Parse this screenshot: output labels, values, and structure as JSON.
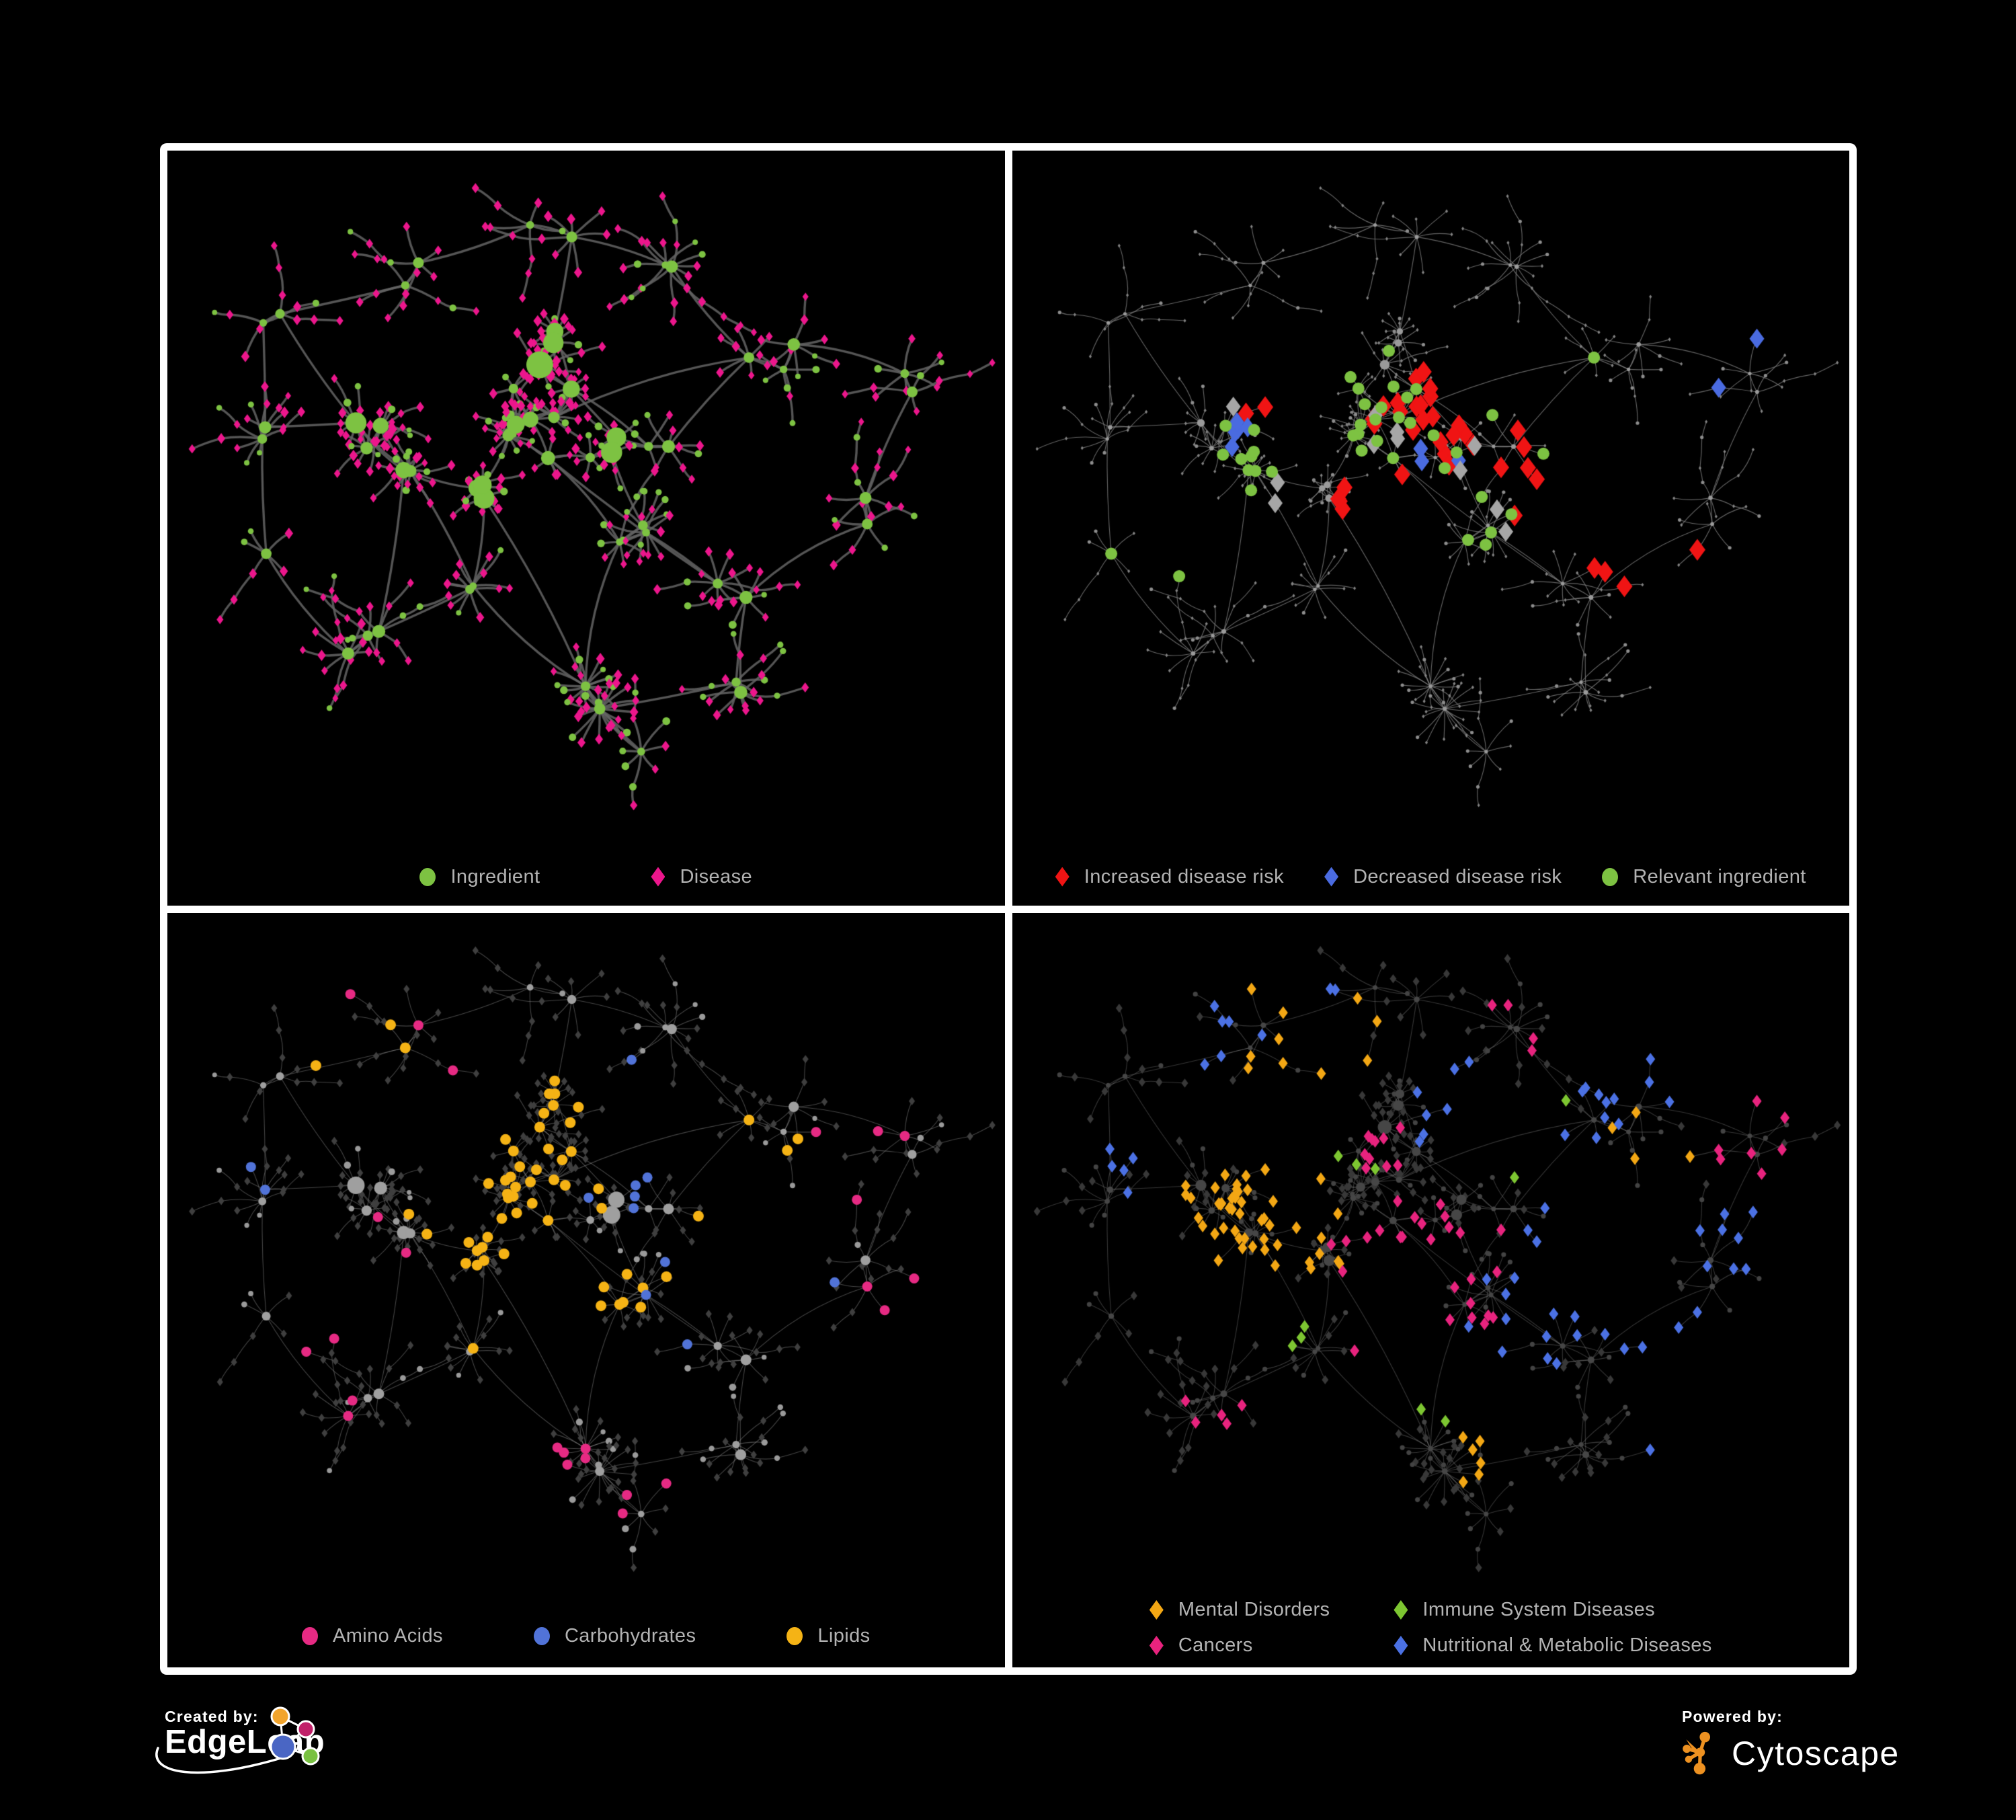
{
  "branding": {
    "left": {
      "prefix": "Created by:",
      "name": "EdgeLeap"
    },
    "right": {
      "prefix": "Powered by:",
      "name": "Cytoscape"
    }
  },
  "colors": {
    "background": "#000000",
    "frame": "#ffffff",
    "legend_text": "#b3b3b3",
    "ingredient_green": "#7dc242",
    "disease_pink": "#ec168c",
    "increased_risk_red": "#f01414",
    "decreased_risk_blue": "#4a6be0",
    "neutral_gray": "#a6a6a6",
    "amino_acids_pink": "#e62a83",
    "carbohydrates_blue": "#5173d8",
    "lipids_orange": "#f5b315",
    "mental_disorders_orange": "#f3a714",
    "immune_green": "#7dc631",
    "cancers_pink": "#e8237e",
    "nutritional_metabolic_blue": "#4b71e4",
    "cytoscape_orange": "#ed9121"
  },
  "panels": [
    {
      "slug": "ingredient-disease",
      "legend": {
        "layout": "row",
        "rows": [
          [
            {
              "label": "Ingredient",
              "shape": "circle",
              "color": "#7dc242"
            },
            {
              "label": "Disease",
              "shape": "diamond",
              "color": "#ec168c"
            }
          ]
        ]
      },
      "style": {
        "edge": {
          "color": "#646464",
          "width": 3.4,
          "alpha": 0.85
        },
        "hub": {
          "color": "#7dc242",
          "scale": 1.15,
          "min": 5
        },
        "leafCircle": {
          "color": "#7dc242",
          "scale": 1.05
        },
        "leafDiamond": {
          "color": "#ec168c",
          "scale": 1.1
        }
      },
      "highlights": []
    },
    {
      "slug": "disease-risk",
      "legend": {
        "layout": "row",
        "rows": [
          [
            {
              "label": "Increased disease risk",
              "shape": "diamond",
              "color": "#f01414"
            },
            {
              "label": "Decreased disease risk",
              "shape": "diamond",
              "color": "#4a6be0"
            },
            {
              "label": "Relevant ingredient",
              "shape": "circle",
              "color": "#7dc242"
            }
          ]
        ]
      },
      "style": {
        "edge": {
          "color": "#7d7d7d",
          "width": 1.15,
          "alpha": 0.8
        },
        "hub": {
          "color": "#9a9a9a",
          "scale": 0.42,
          "min": 2.6
        },
        "leafCircle": {
          "color": "#8d8d8d",
          "size": 2.6
        },
        "leafDiamond": {
          "color": "#828282",
          "size": 2.1
        }
      },
      "highlights": [
        {
          "shape": "diamond",
          "color": "#f01414",
          "size": 12,
          "target": "diamond",
          "groups": [
            [
              22,
              0.5,
              0.37,
              0.1
            ],
            [
              6,
              0.64,
              0.43,
              0.06
            ],
            [
              4,
              0.45,
              0.52,
              0.05
            ],
            [
              3,
              0.74,
              0.6,
              0.04
            ],
            [
              2,
              0.3,
              0.32,
              0.03
            ],
            [
              1,
              0.88,
              0.62,
              0.02
            ]
          ]
        },
        {
          "shape": "diamond",
          "color": "#4a6be0",
          "size": 11,
          "target": "diamond",
          "groups": [
            [
              6,
              0.25,
              0.37,
              0.05
            ],
            [
              3,
              0.52,
              0.38,
              0.05
            ],
            [
              2,
              0.9,
              0.26,
              0.02
            ]
          ]
        },
        {
          "shape": "diamond",
          "color": "#a6a6a6",
          "size": 11,
          "target": "diamond",
          "groups": [
            [
              4,
              0.42,
              0.41,
              0.08
            ],
            [
              2,
              0.55,
              0.44,
              0.05
            ],
            [
              2,
              0.3,
              0.47,
              0.05
            ],
            [
              2,
              0.63,
              0.5,
              0.04
            ],
            [
              1,
              0.23,
              0.29,
              0.02
            ]
          ]
        },
        {
          "shape": "circle",
          "color": "#7dc242",
          "size": 9,
          "target": "circle",
          "groups": [
            [
              20,
              0.45,
              0.36,
              0.1
            ],
            [
              8,
              0.28,
              0.4,
              0.08
            ],
            [
              5,
              0.58,
              0.52,
              0.08
            ],
            [
              4,
              0.2,
              0.52,
              0.06
            ],
            [
              3,
              0.65,
              0.3,
              0.06
            ]
          ]
        }
      ]
    },
    {
      "slug": "nutrient-classes",
      "legend": {
        "layout": "row",
        "rows": [
          [
            {
              "label": "Amino Acids",
              "shape": "circle",
              "color": "#e62a83"
            },
            {
              "label": "Carbohydrates",
              "shape": "circle",
              "color": "#5173d8"
            },
            {
              "label": "Lipids",
              "shape": "circle",
              "color": "#f5b315"
            }
          ]
        ]
      },
      "style": {
        "edge": {
          "color": "#969696",
          "width": 1.1,
          "alpha": 0.45
        },
        "hub": {
          "color": "#9f9f9f",
          "scale": 0.95,
          "min": 3.5
        },
        "leafCircle": {
          "color": "#9a9a9a",
          "scale": 0.95
        },
        "leafDiamond": {
          "color": "#3f3f3f",
          "size": 4.6
        }
      },
      "highlights": [
        {
          "shape": "circle",
          "color": "#f5b315",
          "size": 8,
          "target": "circle",
          "groups": [
            [
              24,
              0.46,
              0.28,
              0.06
            ],
            [
              12,
              0.4,
              0.41,
              0.07
            ],
            [
              8,
              0.54,
              0.58,
              0.08
            ],
            [
              6,
              0.3,
              0.53,
              0.1
            ],
            [
              4,
              0.72,
              0.4,
              0.09
            ],
            [
              3,
              0.2,
              0.15,
              0.05
            ]
          ]
        },
        {
          "shape": "circle",
          "color": "#5173d8",
          "size": 7.5,
          "target": "circle",
          "groups": [
            [
              6,
              0.47,
              0.26,
              0.05
            ],
            [
              3,
              0.58,
              0.56,
              0.07
            ],
            [
              2,
              0.08,
              0.3,
              0.04
            ],
            [
              1,
              0.8,
              0.55,
              0.03
            ]
          ]
        },
        {
          "shape": "circle",
          "color": "#e62a83",
          "size": 7.5,
          "target": "circle",
          "groups": [
            [
              5,
              0.44,
              0.74,
              0.09
            ],
            [
              4,
              0.18,
              0.55,
              0.09
            ],
            [
              4,
              0.86,
              0.3,
              0.07
            ],
            [
              3,
              0.6,
              0.86,
              0.06
            ],
            [
              3,
              0.94,
              0.55,
              0.05
            ],
            [
              3,
              0.28,
              0.2,
              0.06
            ],
            [
              2,
              0.1,
              0.7,
              0.04
            ]
          ]
        }
      ]
    },
    {
      "slug": "disease-classes",
      "legend": {
        "layout": "grid",
        "rows": [
          [
            {
              "label": "Mental Disorders",
              "shape": "diamond",
              "color": "#f3a714"
            },
            {
              "label": "Immune System Diseases",
              "shape": "diamond",
              "color": "#7dc631"
            }
          ],
          [
            {
              "label": "Cancers",
              "shape": "diamond",
              "color": "#e8237e"
            },
            {
              "label": "Nutritional & Metabolic Diseases",
              "shape": "diamond",
              "color": "#4b71e4"
            }
          ]
        ]
      },
      "style": {
        "edge": {
          "color": "#8f8f8f",
          "width": 1.1,
          "alpha": 0.38
        },
        "hub": {
          "color": "#464646",
          "scale": 0.6,
          "min": 3.5
        },
        "leafCircle": {
          "color": "#434343",
          "size": 3.6
        },
        "leafDiamond": {
          "color": "#383838",
          "size": 5
        },
        "highlightLast": true
      },
      "highlights": [
        {
          "shape": "diamond",
          "color": "#f3a714",
          "size": 7,
          "target": "diamond",
          "groups": [
            [
              48,
              0.27,
              0.44,
              0.08
            ],
            [
              10,
              0.34,
              0.14,
              0.08
            ],
            [
              6,
              0.58,
              0.76,
              0.08
            ],
            [
              4,
              0.78,
              0.3,
              0.05
            ]
          ]
        },
        {
          "shape": "diamond",
          "color": "#e8237e",
          "size": 7,
          "target": "diamond",
          "groups": [
            [
              26,
              0.49,
              0.51,
              0.08
            ],
            [
              10,
              0.43,
              0.31,
              0.06
            ],
            [
              7,
              0.9,
              0.28,
              0.05
            ],
            [
              5,
              0.24,
              0.7,
              0.07
            ],
            [
              4,
              0.6,
              0.13,
              0.05
            ]
          ]
        },
        {
          "shape": "diamond",
          "color": "#4b71e4",
          "size": 7,
          "target": "diamond",
          "groups": [
            [
              14,
              0.62,
              0.54,
              0.06
            ],
            [
              9,
              0.77,
              0.14,
              0.07
            ],
            [
              8,
              0.9,
              0.45,
              0.06
            ],
            [
              8,
              0.29,
              0.09,
              0.08
            ],
            [
              7,
              0.54,
              0.24,
              0.09
            ],
            [
              6,
              0.84,
              0.66,
              0.07
            ],
            [
              5,
              0.13,
              0.3,
              0.06
            ],
            [
              4,
              0.7,
              0.36,
              0.05
            ]
          ]
        },
        {
          "shape": "diamond",
          "color": "#7dc631",
          "size": 7,
          "target": "diamond",
          "groups": [
            [
              3,
              0.39,
              0.3,
              0.05
            ],
            [
              3,
              0.34,
              0.55,
              0.06
            ],
            [
              2,
              0.55,
              0.66,
              0.04
            ],
            [
              2,
              0.63,
              0.3,
              0.04
            ]
          ]
        }
      ]
    }
  ],
  "network": {
    "type": "network",
    "seed": 1337,
    "clusters": [
      [
        0.42,
        0.37,
        0.06,
        6,
        6,
        13,
        0.12,
        1
      ],
      [
        0.26,
        0.41,
        0.055,
        5,
        6,
        12,
        0.18,
        1
      ],
      [
        0.47,
        0.26,
        0.045,
        4,
        7,
        12,
        0.1,
        1
      ],
      [
        0.57,
        0.53,
        0.04,
        3,
        6,
        10,
        0.25,
        0
      ],
      [
        0.5,
        0.79,
        0.045,
        2,
        14,
        22,
        0.12,
        0
      ],
      [
        0.76,
        0.27,
        0.05,
        3,
        6,
        10,
        0.32,
        0
      ],
      [
        0.92,
        0.31,
        0.03,
        2,
        4,
        7,
        0.3,
        0
      ],
      [
        0.27,
        0.12,
        0.045,
        2,
        5,
        8,
        0.42,
        0
      ],
      [
        0.46,
        0.08,
        0.035,
        2,
        4,
        7,
        0.38,
        0
      ],
      [
        0.63,
        0.12,
        0.035,
        2,
        4,
        7,
        0.42,
        0
      ],
      [
        0.1,
        0.37,
        0.04,
        2,
        4,
        8,
        0.42,
        0
      ],
      [
        0.2,
        0.68,
        0.05,
        3,
        5,
        9,
        0.32,
        0
      ],
      [
        0.34,
        0.6,
        0.035,
        2,
        5,
        8,
        0.25,
        0
      ],
      [
        0.68,
        0.61,
        0.04,
        2,
        5,
        9,
        0.32,
        0
      ],
      [
        0.6,
        0.4,
        0.03,
        2,
        4,
        7,
        0.2,
        0
      ],
      [
        0.12,
        0.2,
        0.035,
        2,
        3,
        6,
        0.45,
        0
      ],
      [
        0.86,
        0.5,
        0.03,
        2,
        4,
        7,
        0.32,
        0
      ],
      [
        0.56,
        0.88,
        0.025,
        1,
        6,
        10,
        0.2,
        0
      ],
      [
        0.07,
        0.57,
        0.025,
        1,
        4,
        7,
        0.38,
        0
      ],
      [
        0.71,
        0.76,
        0.03,
        2,
        4,
        8,
        0.32,
        0
      ],
      [
        0.37,
        0.47,
        0.03,
        3,
        5,
        9,
        0.1,
        1
      ],
      [
        0.53,
        0.4,
        0.03,
        3,
        5,
        9,
        0.1,
        1
      ]
    ],
    "links": [
      [
        0,
        20
      ],
      [
        20,
        1
      ],
      [
        0,
        21
      ],
      [
        21,
        14
      ],
      [
        0,
        2
      ],
      [
        2,
        8
      ],
      [
        8,
        9
      ],
      [
        7,
        8
      ],
      [
        7,
        15
      ],
      [
        15,
        10
      ],
      [
        1,
        10
      ],
      [
        1,
        11
      ],
      [
        11,
        18
      ],
      [
        11,
        12
      ],
      [
        12,
        4
      ],
      [
        0,
        3
      ],
      [
        3,
        13
      ],
      [
        13,
        19
      ],
      [
        13,
        16
      ],
      [
        14,
        5
      ],
      [
        5,
        6
      ],
      [
        5,
        9
      ],
      [
        4,
        17
      ],
      [
        3,
        4
      ],
      [
        16,
        6
      ],
      [
        19,
        4
      ],
      [
        2,
        21
      ],
      [
        20,
        12
      ]
    ],
    "extraLinks": [
      [
        0,
        5
      ],
      [
        1,
        12
      ],
      [
        20,
        4
      ],
      [
        21,
        3
      ],
      [
        2,
        14
      ],
      [
        0,
        13
      ],
      [
        1,
        15
      ],
      [
        10,
        18
      ]
    ]
  }
}
